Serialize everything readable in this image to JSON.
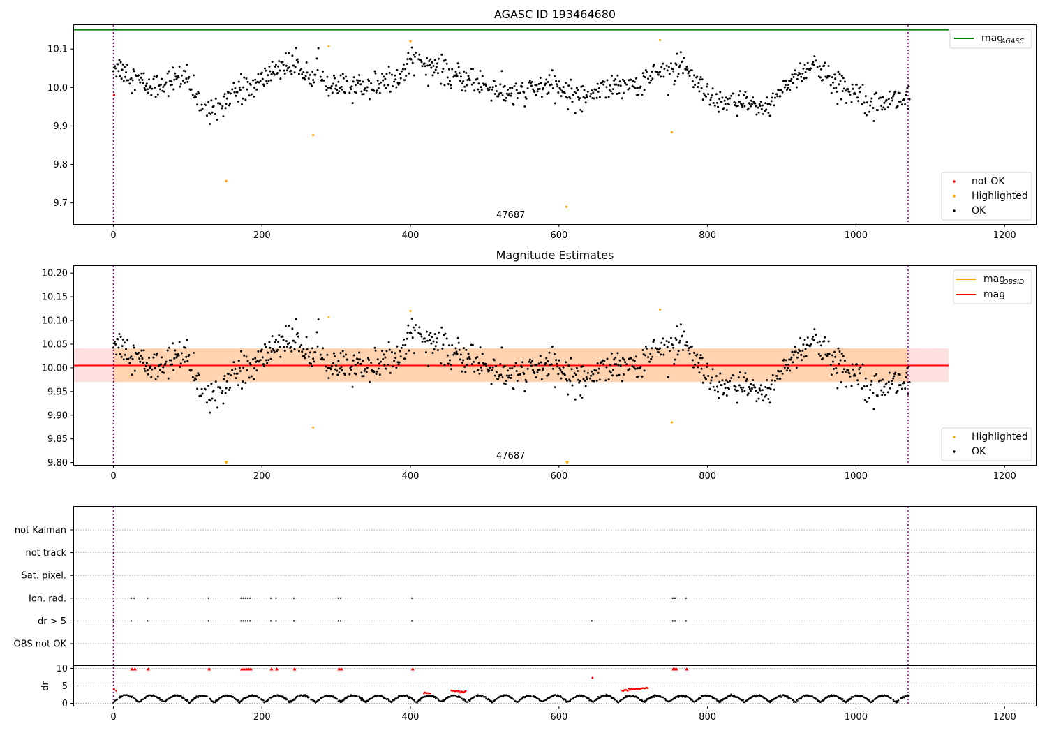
{
  "chart_data": [
    {
      "type": "scatter",
      "title": "AGASC ID 193464680",
      "xlim": [
        -54,
        1243
      ],
      "ylim": [
        9.645,
        10.162
      ],
      "xticks": [
        0,
        200,
        400,
        600,
        800,
        1000,
        1200
      ],
      "yticks": [
        9.7,
        9.8,
        9.9,
        10.0,
        10.1
      ],
      "ytick_labels": [
        "9.7",
        "9.8",
        "9.9",
        "10.0",
        "10.1"
      ],
      "vlines": [
        0,
        1070
      ],
      "obsid_label": "47687",
      "obsid_label_x": 535,
      "mag_agasc": 10.15,
      "mag_agasc_x": [
        -54,
        1125
      ],
      "not_ok_points": [
        [
          1,
          9.98
        ]
      ],
      "highlighted_points": [
        [
          152,
          9.757
        ],
        [
          269,
          9.876
        ],
        [
          290,
          10.107
        ],
        [
          400,
          10.12
        ],
        [
          610,
          9.69
        ],
        [
          736,
          10.123
        ],
        [
          752,
          9.884
        ]
      ],
      "ok_segments": [
        [
          0,
          10.06
        ],
        [
          50,
          10.0
        ],
        [
          95,
          10.03
        ],
        [
          110,
          9.98
        ],
        [
          125,
          9.935
        ],
        [
          145,
          9.96
        ],
        [
          160,
          9.99
        ],
        [
          185,
          10.0
        ],
        [
          205,
          10.025
        ],
        [
          225,
          10.06
        ],
        [
          250,
          10.05
        ],
        [
          275,
          10.04
        ],
        [
          290,
          10.0
        ],
        [
          320,
          10.0
        ],
        [
          360,
          10.01
        ],
        [
          385,
          10.02
        ],
        [
          400,
          10.08
        ],
        [
          425,
          10.06
        ],
        [
          450,
          10.03
        ],
        [
          480,
          10.02
        ],
        [
          510,
          10.0
        ],
        [
          530,
          9.98
        ],
        [
          560,
          9.99
        ],
        [
          590,
          10.01
        ],
        [
          620,
          9.975
        ],
        [
          650,
          9.99
        ],
        [
          680,
          10.01
        ],
        [
          710,
          10.01
        ],
        [
          740,
          10.05
        ],
        [
          770,
          10.045
        ],
        [
          790,
          10.0
        ],
        [
          810,
          9.95
        ],
        [
          830,
          9.96
        ],
        [
          860,
          9.955
        ],
        [
          880,
          9.945
        ],
        [
          900,
          10.0
        ],
        [
          920,
          10.03
        ],
        [
          945,
          10.06
        ],
        [
          965,
          10.02
        ],
        [
          980,
          10.0
        ],
        [
          1000,
          9.99
        ],
        [
          1030,
          9.965
        ],
        [
          1065,
          9.97
        ],
        [
          1072,
          10.0
        ]
      ],
      "legends": [
        {
          "position": "top-right",
          "entries": [
            {
              "label": "mag",
              "sub": "AGASC",
              "color": "#008000",
              "kind": "line"
            }
          ]
        },
        {
          "position": "lower-right",
          "entries": [
            {
              "label": "not OK",
              "color": "#ff0000",
              "kind": "marker"
            },
            {
              "label": "Highlighted",
              "color": "#ffa500",
              "kind": "marker"
            },
            {
              "label": "OK",
              "color": "#000000",
              "kind": "marker"
            }
          ]
        }
      ]
    },
    {
      "type": "scatter",
      "title": "Magnitude Estimates",
      "xlim": [
        -54,
        1243
      ],
      "ylim": [
        9.795,
        10.215
      ],
      "xticks": [
        0,
        200,
        400,
        600,
        800,
        1000,
        1200
      ],
      "yticks": [
        9.8,
        9.85,
        9.9,
        9.95,
        10.0,
        10.05,
        10.1,
        10.15,
        10.2
      ],
      "ytick_labels": [
        "9.80",
        "9.85",
        "9.90",
        "9.95",
        "10.00",
        "10.05",
        "10.10",
        "10.15",
        "10.20"
      ],
      "vlines": [
        0,
        1070
      ],
      "obsid_label": "47687",
      "obsid_label_x": 535,
      "mag": 10.005,
      "mag_band": [
        9.97,
        10.041
      ],
      "mag_x": [
        -54,
        1125
      ],
      "mag_obsid": 10.005,
      "mag_obsid_band": [
        9.97,
        10.041
      ],
      "mag_obsid_x": [
        0,
        1070
      ],
      "highlighted_points": [
        [
          269,
          9.874
        ],
        [
          290,
          10.107
        ],
        [
          400,
          10.12
        ],
        [
          736,
          10.123
        ],
        [
          752,
          9.885
        ]
      ],
      "highlighted_below_range": [
        152,
        611
      ],
      "legends": [
        {
          "position": "top-right",
          "entries": [
            {
              "label": "mag",
              "sub": "OBSID",
              "color": "#ffa500",
              "kind": "line"
            },
            {
              "label": "mag",
              "color": "#ff0000",
              "kind": "line"
            }
          ]
        },
        {
          "position": "lower-right",
          "entries": [
            {
              "label": "Highlighted",
              "color": "#ffa500",
              "kind": "marker"
            },
            {
              "label": "OK",
              "color": "#000000",
              "kind": "marker"
            }
          ]
        }
      ]
    },
    {
      "type": "scatter",
      "xlim": [
        -54,
        1243
      ],
      "xticks": [
        0,
        200,
        400,
        600,
        800,
        1000,
        1200
      ],
      "flag_categories": [
        "not Kalman",
        "not track",
        "Sat. pixel.",
        "Ion. rad.",
        "dr > 5",
        "OBS not OK"
      ],
      "vlines": [
        0,
        1070
      ],
      "flags": {
        "Ion. rad.": [
          24,
          28,
          46,
          128,
          172,
          175,
          178,
          181,
          184,
          212,
          219,
          243,
          303,
          306,
          402,
          753,
          755,
          757,
          771
        ],
        "dr > 5": [
          0,
          24,
          46,
          128,
          172,
          175,
          178,
          181,
          184,
          212,
          219,
          243,
          303,
          306,
          402,
          644,
          753,
          755,
          757,
          771
        ]
      },
      "dr": {
        "ylim": [
          -0.7,
          10.7
        ],
        "yticks": [
          0,
          5,
          10
        ],
        "ylabel": "dr",
        "not_ok_points": [
          [
            1,
            4.0
          ],
          [
            4,
            3.6
          ],
          [
            25,
            9.8
          ],
          [
            29,
            9.8
          ],
          [
            47,
            9.8
          ],
          [
            129,
            9.8
          ],
          [
            173,
            9.8
          ],
          [
            176,
            9.8
          ],
          [
            179,
            9.8
          ],
          [
            182,
            9.8
          ],
          [
            185,
            9.8
          ],
          [
            213,
            9.8
          ],
          [
            220,
            9.8
          ],
          [
            244,
            9.8
          ],
          [
            304,
            9.8
          ],
          [
            307,
            9.8
          ],
          [
            403,
            9.8
          ],
          [
            645,
            7.3
          ],
          [
            754,
            9.8
          ],
          [
            756,
            9.8
          ],
          [
            758,
            9.8
          ],
          [
            772,
            9.8
          ]
        ],
        "not_ok_clusters": [
          [
            418,
            427,
            2.8
          ],
          [
            455,
            475,
            3.4
          ],
          [
            685,
            720,
            3.6
          ]
        ]
      }
    }
  ]
}
